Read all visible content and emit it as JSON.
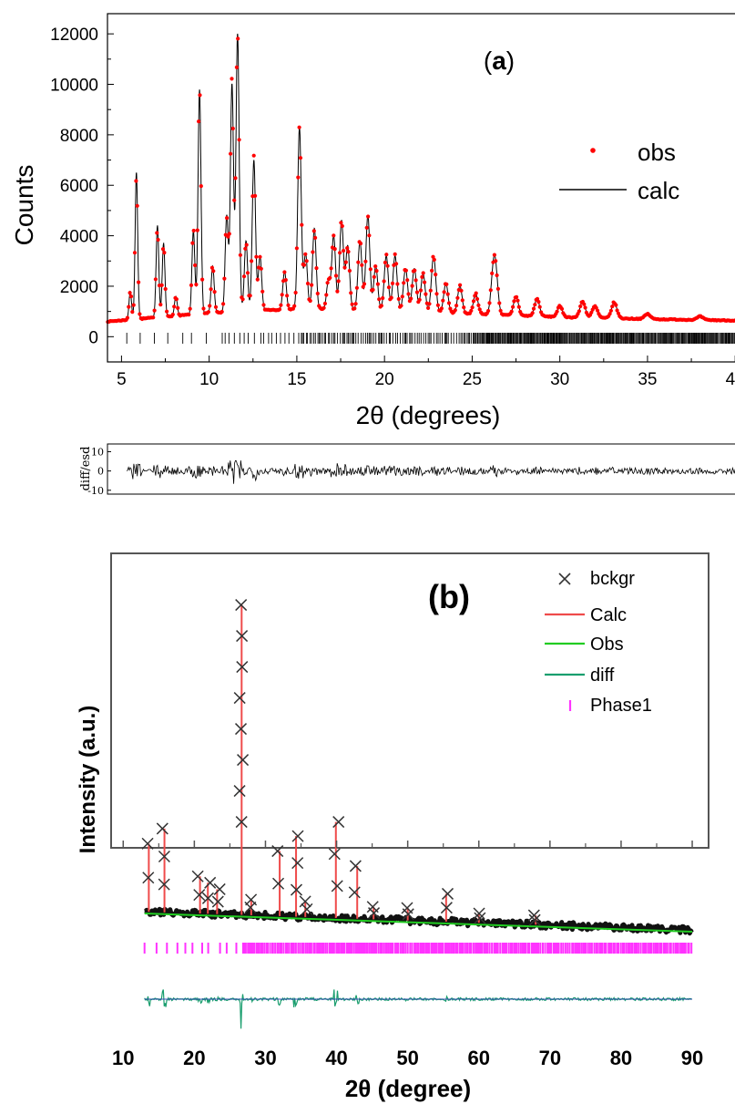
{
  "chart_data": [
    {
      "type": "line",
      "panel_label": "a",
      "xlabel": "2θ (degrees)",
      "ylabel": "Counts",
      "xlim": [
        4.2,
        41.6
      ],
      "ylim": [
        -1000,
        12800
      ],
      "x_ticks": [
        5,
        10,
        15,
        20,
        25,
        30,
        35,
        40
      ],
      "y_ticks": [
        0,
        2000,
        4000,
        6000,
        8000,
        10000,
        12000
      ],
      "x_tick_labels": [
        "5",
        "10",
        "15",
        "20",
        "25",
        "30",
        "35",
        "40"
      ],
      "y_tick_labels": [
        "0",
        "2000",
        "4000",
        "6000",
        "8000",
        "10000",
        "12000"
      ],
      "legend": {
        "position": "right",
        "entries": [
          "obs",
          "calc"
        ]
      },
      "colors": {
        "obs": "#ff0000",
        "calc": "#000000"
      },
      "series": [
        {
          "name": "obs",
          "style": "markers"
        },
        {
          "name": "calc",
          "style": "line"
        }
      ],
      "background": [
        [
          4.2,
          600
        ],
        [
          8,
          820
        ],
        [
          12,
          1050
        ],
        [
          16,
          1100
        ],
        [
          20,
          1050
        ],
        [
          25,
          900
        ],
        [
          30,
          780
        ],
        [
          35,
          700
        ],
        [
          41.6,
          620
        ]
      ],
      "peaks": [
        [
          5.5,
          1800
        ],
        [
          5.85,
          6500
        ],
        [
          7.05,
          4400
        ],
        [
          7.4,
          3700
        ],
        [
          8.1,
          1600
        ],
        [
          9.1,
          4200
        ],
        [
          9.45,
          9800
        ],
        [
          10.2,
          2800
        ],
        [
          11.0,
          4800
        ],
        [
          11.3,
          10000
        ],
        [
          11.62,
          12000
        ],
        [
          12.1,
          3800
        ],
        [
          12.55,
          7000
        ],
        [
          12.9,
          3200
        ],
        [
          14.3,
          2600
        ],
        [
          15.15,
          8300
        ],
        [
          15.5,
          3300
        ],
        [
          16.0,
          4300
        ],
        [
          16.8,
          2200
        ],
        [
          17.1,
          4000
        ],
        [
          17.55,
          4600
        ],
        [
          17.9,
          3600
        ],
        [
          18.6,
          3800
        ],
        [
          19.05,
          4800
        ],
        [
          19.5,
          2800
        ],
        [
          20.1,
          3200
        ],
        [
          20.6,
          3200
        ],
        [
          21.2,
          2700
        ],
        [
          21.7,
          2700
        ],
        [
          22.2,
          2500
        ],
        [
          22.8,
          3200
        ],
        [
          23.5,
          2100
        ],
        [
          24.3,
          2000
        ],
        [
          25.2,
          1700
        ],
        [
          26.2,
          2300
        ],
        [
          26.35,
          2200
        ],
        [
          27.5,
          1600
        ],
        [
          28.7,
          1500
        ],
        [
          30.0,
          1200
        ],
        [
          31.3,
          1400
        ],
        [
          32.0,
          1200
        ],
        [
          33.1,
          1350
        ],
        [
          35.0,
          900
        ],
        [
          38.0,
          800
        ]
      ],
      "reflection_range": [
        5.3,
        41.6
      ],
      "diff": {
        "ylabel": "diff/esd",
        "y_ticks": [
          -10,
          0,
          10
        ],
        "y_tick_labels": [
          "-10",
          "0",
          "10"
        ],
        "ylim": [
          -12,
          14
        ]
      }
    },
    {
      "type": "line",
      "panel_label": "(b)",
      "xlabel": "2θ (degree)",
      "ylabel": "Intensity (a.u.)",
      "xlim": [
        8.3,
        92.3
      ],
      "x_ticks": [
        10,
        20,
        30,
        40,
        50,
        60,
        70,
        80,
        90
      ],
      "x_tick_labels": [
        "10",
        "20",
        "30",
        "40",
        "50",
        "60",
        "70",
        "80",
        "90"
      ],
      "legend": {
        "position": "top-right",
        "entries": [
          "bckgr",
          "Calc",
          "Obs",
          "diff",
          "Phase1"
        ]
      },
      "colors": {
        "bckgr": "#333333",
        "Calc": "#ef4b4b",
        "Obs": "#22cc22",
        "diff": "#1a9e6e",
        "Phase1": "#ff33ff"
      },
      "series": [
        {
          "name": "bckgr",
          "style": "x-markers"
        },
        {
          "name": "Calc",
          "style": "line"
        },
        {
          "name": "Obs",
          "style": "line"
        },
        {
          "name": "diff",
          "style": "line"
        },
        {
          "name": "Phase1",
          "style": "ticks"
        }
      ],
      "peaks": [
        [
          13.6,
          0.22
        ],
        [
          15.8,
          0.27
        ],
        [
          20.8,
          0.12
        ],
        [
          21.9,
          0.1
        ],
        [
          23.2,
          0.08
        ],
        [
          26.65,
          1.0
        ],
        [
          28.0,
          0.05
        ],
        [
          32.0,
          0.21
        ],
        [
          34.3,
          0.26
        ],
        [
          35.6,
          0.05
        ],
        [
          39.9,
          0.31
        ],
        [
          42.9,
          0.17
        ],
        [
          45.2,
          0.04
        ],
        [
          50.0,
          0.04
        ],
        [
          55.4,
          0.09
        ],
        [
          60.0,
          0.03
        ],
        [
          68.0,
          0.03
        ]
      ],
      "reflection_range": [
        13.0,
        90.0
      ]
    }
  ]
}
